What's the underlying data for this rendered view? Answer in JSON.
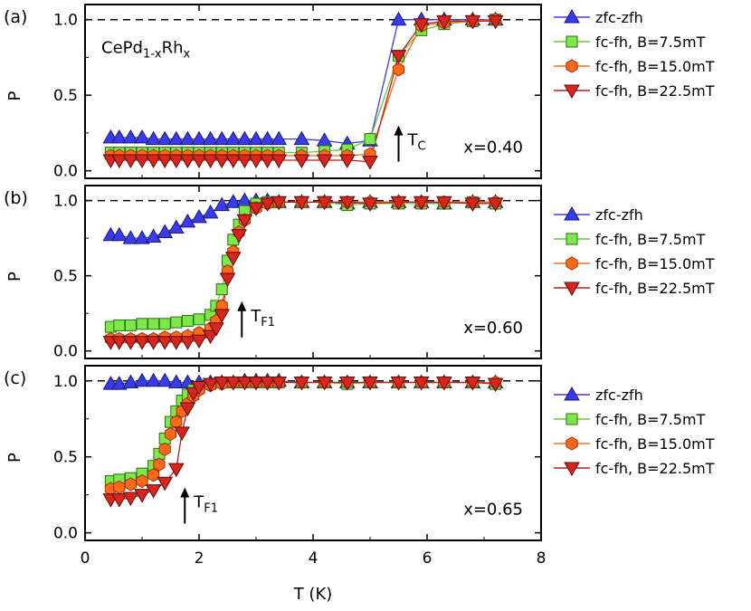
{
  "chart_data": {
    "type": "line",
    "xlabel": "T (K)",
    "xlim": [
      0,
      8
    ],
    "xticks": [
      0,
      2,
      4,
      6,
      8
    ],
    "panels": [
      {
        "panel_label": "(a)",
        "ylabel": "P",
        "ylim": [
          -0.05,
          1.1
        ],
        "yticks": [
          "0.0",
          "0.5",
          "1.0"
        ],
        "reference_line": 1.0,
        "composition_label": "x=0.40",
        "sample_label": {
          "base": "CePd",
          "sub1": "1-x",
          "mid": "Rh",
          "sub2": "x"
        },
        "transition_label": {
          "main": "T",
          "sub": "C",
          "x": 5.5,
          "y": 0.12
        },
        "legend_position": "right",
        "series": [
          {
            "name": "zfc-zfh",
            "marker": "triangle-up",
            "color": "#3a3aee",
            "line_color": "#3a3aee",
            "x": [
              0.45,
              0.6,
              0.8,
              1.0,
              1.2,
              1.4,
              1.6,
              1.8,
              2.0,
              2.2,
              2.4,
              2.6,
              2.8,
              3.0,
              3.2,
              3.4,
              3.8,
              4.2,
              4.6,
              5.0,
              5.5,
              5.9,
              6.3,
              6.8,
              7.2
            ],
            "y": [
              0.22,
              0.22,
              0.22,
              0.22,
              0.21,
              0.21,
              0.21,
              0.21,
              0.21,
              0.21,
              0.21,
              0.21,
              0.21,
              0.21,
              0.21,
              0.21,
              0.21,
              0.2,
              0.18,
              0.2,
              1.0,
              1.0,
              1.0,
              1.0,
              1.0
            ]
          },
          {
            "name": "fc-fh, B=7.5mT",
            "marker": "square",
            "color": "#7de84a",
            "line_color": "#66cc33",
            "x": [
              0.45,
              0.6,
              0.8,
              1.0,
              1.2,
              1.4,
              1.6,
              1.8,
              2.0,
              2.2,
              2.4,
              2.6,
              2.8,
              3.0,
              3.2,
              3.4,
              3.8,
              4.2,
              4.6,
              5.0,
              5.5,
              5.9,
              6.3,
              6.8,
              7.2
            ],
            "y": [
              0.12,
              0.12,
              0.12,
              0.12,
              0.12,
              0.12,
              0.12,
              0.12,
              0.12,
              0.12,
              0.12,
              0.12,
              0.12,
              0.12,
              0.12,
              0.12,
              0.12,
              0.13,
              0.14,
              0.21,
              0.76,
              0.93,
              0.97,
              0.99,
              1.0
            ]
          },
          {
            "name": "fc-fh, B=15.0mT",
            "marker": "hexagon",
            "color": "#ff6a1a",
            "line_color": "#ff6a1a",
            "x": [
              0.45,
              0.6,
              0.8,
              1.0,
              1.2,
              1.4,
              1.6,
              1.8,
              2.0,
              2.2,
              2.4,
              2.6,
              2.8,
              3.0,
              3.2,
              3.4,
              3.8,
              4.2,
              4.6,
              5.0,
              5.5,
              5.9,
              6.3,
              6.8,
              7.2
            ],
            "y": [
              0.1,
              0.1,
              0.1,
              0.1,
              0.1,
              0.1,
              0.1,
              0.1,
              0.1,
              0.1,
              0.1,
              0.1,
              0.1,
              0.1,
              0.1,
              0.1,
              0.1,
              0.1,
              0.1,
              0.11,
              0.67,
              0.96,
              0.98,
              0.99,
              1.0
            ]
          },
          {
            "name": "fc-fh, B=22.5mT",
            "marker": "triangle-down",
            "color": "#d8261f",
            "line_color": "#c01a1a",
            "x": [
              0.45,
              0.6,
              0.8,
              1.0,
              1.2,
              1.4,
              1.6,
              1.8,
              2.0,
              2.2,
              2.4,
              2.6,
              2.8,
              3.0,
              3.2,
              3.4,
              3.8,
              4.2,
              4.6,
              5.0,
              5.5,
              5.9,
              6.3,
              6.8,
              7.2
            ],
            "y": [
              0.07,
              0.07,
              0.07,
              0.07,
              0.07,
              0.07,
              0.07,
              0.07,
              0.07,
              0.07,
              0.07,
              0.07,
              0.07,
              0.07,
              0.07,
              0.07,
              0.07,
              0.07,
              0.07,
              0.06,
              0.76,
              0.97,
              0.99,
              0.99,
              0.99
            ]
          }
        ]
      },
      {
        "panel_label": "(b)",
        "ylabel": "P",
        "ylim": [
          -0.05,
          1.1
        ],
        "yticks": [
          "0.0",
          "0.5",
          "1.0"
        ],
        "reference_line": 1.0,
        "composition_label": "x=0.60",
        "transition_label": {
          "main": "T",
          "sub": "F1",
          "x": 2.75,
          "y": 0.15
        },
        "legend_position": "right",
        "series": [
          {
            "name": "zfc-zfh",
            "marker": "triangle-up",
            "color": "#3a3aee",
            "line_color": "#3a3aee",
            "x": [
              0.45,
              0.6,
              0.8,
              1.0,
              1.2,
              1.4,
              1.6,
              1.8,
              2.0,
              2.2,
              2.4,
              2.6,
              2.8,
              3.0,
              3.2,
              3.4,
              3.8,
              4.2,
              4.6,
              5.0,
              5.5,
              5.9,
              6.3,
              6.8,
              7.2
            ],
            "y": [
              0.77,
              0.77,
              0.75,
              0.75,
              0.76,
              0.79,
              0.82,
              0.86,
              0.89,
              0.92,
              0.97,
              0.99,
              1.0,
              1.0,
              1.0,
              0.99,
              0.99,
              0.99,
              0.98,
              0.99,
              0.99,
              0.99,
              0.98,
              0.99,
              0.99
            ]
          },
          {
            "name": "fc-fh, B=7.5mT",
            "marker": "square",
            "color": "#7de84a",
            "line_color": "#66cc33",
            "x": [
              0.45,
              0.6,
              0.8,
              1.0,
              1.2,
              1.4,
              1.6,
              1.8,
              2.0,
              2.2,
              2.3,
              2.4,
              2.5,
              2.6,
              2.7,
              2.8,
              3.0,
              3.2,
              3.4,
              3.8,
              4.2,
              4.6,
              5.0,
              5.5,
              5.9,
              6.3,
              6.8,
              7.2
            ],
            "y": [
              0.16,
              0.17,
              0.17,
              0.18,
              0.18,
              0.18,
              0.19,
              0.2,
              0.21,
              0.24,
              0.3,
              0.41,
              0.6,
              0.74,
              0.84,
              0.93,
              0.98,
              0.99,
              0.99,
              0.99,
              0.99,
              0.97,
              0.98,
              0.98,
              0.98,
              0.98,
              0.99,
              0.98
            ]
          },
          {
            "name": "fc-fh, B=15.0mT",
            "marker": "hexagon",
            "color": "#ff6a1a",
            "line_color": "#ff6a1a",
            "x": [
              0.45,
              0.6,
              0.8,
              1.0,
              1.2,
              1.4,
              1.6,
              1.8,
              2.0,
              2.2,
              2.3,
              2.4,
              2.5,
              2.6,
              2.7,
              2.8,
              3.0,
              3.2,
              3.4,
              3.8,
              4.2,
              4.6,
              5.0,
              5.5,
              5.9,
              6.3,
              6.8,
              7.2
            ],
            "y": [
              0.08,
              0.08,
              0.08,
              0.08,
              0.08,
              0.09,
              0.09,
              0.1,
              0.12,
              0.15,
              0.2,
              0.3,
              0.53,
              0.66,
              0.79,
              0.87,
              0.95,
              0.98,
              0.99,
              0.99,
              0.99,
              0.99,
              0.99,
              0.99,
              0.99,
              0.99,
              0.99,
              0.99
            ]
          },
          {
            "name": "fc-fh, B=22.5mT",
            "marker": "triangle-down",
            "color": "#d8261f",
            "line_color": "#c01a1a",
            "x": [
              0.45,
              0.6,
              0.8,
              1.0,
              1.2,
              1.4,
              1.6,
              1.8,
              2.0,
              2.2,
              2.3,
              2.4,
              2.5,
              2.6,
              2.7,
              2.8,
              3.0,
              3.2,
              3.4,
              3.8,
              4.2,
              4.6,
              5.0,
              5.5,
              5.9,
              6.3,
              6.8,
              7.2
            ],
            "y": [
              0.06,
              0.06,
              0.06,
              0.06,
              0.06,
              0.06,
              0.06,
              0.06,
              0.07,
              0.1,
              0.15,
              0.24,
              0.48,
              0.62,
              0.77,
              0.87,
              0.95,
              0.98,
              0.99,
              0.99,
              0.99,
              0.99,
              0.98,
              0.99,
              0.99,
              0.99,
              0.98,
              0.98
            ]
          }
        ]
      },
      {
        "panel_label": "(c)",
        "ylabel": "P",
        "ylim": [
          -0.05,
          1.1
        ],
        "yticks": [
          "0.0",
          "0.5",
          "1.0"
        ],
        "reference_line": 1.0,
        "composition_label": "x=0.65",
        "transition_label": {
          "main": "T",
          "sub": "F1",
          "x": 1.75,
          "y": 0.12
        },
        "legend_position": "right",
        "series": [
          {
            "name": "zfc-zfh",
            "marker": "triangle-up",
            "color": "#3a3aee",
            "line_color": "#3a3aee",
            "x": [
              0.45,
              0.6,
              0.8,
              1.0,
              1.2,
              1.4,
              1.6,
              1.8,
              2.0,
              2.2,
              2.4,
              2.6,
              2.8,
              3.0,
              3.2,
              3.4,
              3.8,
              4.2,
              4.6,
              5.0,
              5.5,
              5.9,
              6.3,
              6.8,
              7.2
            ],
            "y": [
              0.98,
              0.98,
              0.99,
              1.0,
              1.0,
              1.0,
              0.99,
              0.99,
              0.99,
              0.99,
              0.99,
              0.99,
              1.0,
              1.0,
              1.0,
              1.0,
              0.99,
              0.99,
              0.99,
              0.99,
              0.99,
              0.99,
              0.99,
              0.99,
              0.99
            ]
          },
          {
            "name": "fc-fh, B=7.5mT",
            "marker": "square",
            "color": "#7de84a",
            "line_color": "#66cc33",
            "x": [
              0.45,
              0.6,
              0.8,
              1.0,
              1.2,
              1.3,
              1.4,
              1.5,
              1.6,
              1.7,
              1.8,
              1.9,
              2.0,
              2.2,
              2.4,
              2.6,
              2.8,
              3.0,
              3.2,
              3.4,
              3.8,
              4.2,
              4.6,
              5.0,
              5.5,
              5.9,
              6.3,
              6.8,
              7.2
            ],
            "y": [
              0.34,
              0.35,
              0.36,
              0.39,
              0.44,
              0.52,
              0.62,
              0.73,
              0.8,
              0.87,
              0.91,
              0.94,
              0.96,
              0.98,
              0.99,
              0.99,
              0.99,
              0.99,
              0.99,
              0.99,
              0.99,
              0.99,
              0.98,
              0.99,
              0.99,
              0.99,
              0.99,
              0.99,
              0.98
            ]
          },
          {
            "name": "fc-fh, B=15.0mT",
            "marker": "hexagon",
            "color": "#ff6a1a",
            "line_color": "#ff6a1a",
            "x": [
              0.45,
              0.6,
              0.8,
              1.0,
              1.2,
              1.3,
              1.4,
              1.5,
              1.6,
              1.7,
              1.8,
              1.9,
              2.0,
              2.2,
              2.4,
              2.6,
              2.8,
              3.0,
              3.2,
              3.4,
              3.8,
              4.2,
              4.6,
              5.0,
              5.5,
              5.9,
              6.3,
              6.8,
              7.2
            ],
            "y": [
              0.29,
              0.3,
              0.32,
              0.34,
              0.38,
              0.45,
              0.55,
              0.65,
              0.73,
              0.8,
              0.85,
              0.9,
              0.94,
              0.97,
              0.98,
              0.99,
              0.99,
              0.99,
              0.99,
              0.99,
              0.99,
              0.99,
              0.99,
              0.99,
              0.99,
              0.99,
              0.99,
              0.99,
              0.99
            ]
          },
          {
            "name": "fc-fh, B=22.5mT",
            "marker": "triangle-down",
            "color": "#d8261f",
            "line_color": "#c01a1a",
            "x": [
              0.45,
              0.6,
              0.8,
              1.0,
              1.2,
              1.4,
              1.6,
              1.7,
              1.8,
              1.9,
              2.0,
              2.2,
              2.4,
              2.6,
              2.8,
              3.0,
              3.2,
              3.4,
              3.8,
              4.2,
              4.6,
              5.0,
              5.5,
              5.9,
              6.3,
              6.8,
              7.2
            ],
            "y": [
              0.22,
              0.22,
              0.23,
              0.25,
              0.28,
              0.33,
              0.42,
              0.66,
              0.82,
              0.92,
              0.96,
              0.98,
              0.99,
              0.99,
              0.99,
              0.99,
              0.99,
              0.99,
              0.99,
              0.99,
              0.99,
              0.99,
              0.99,
              0.99,
              0.99,
              0.99,
              0.98
            ]
          }
        ]
      }
    ]
  }
}
